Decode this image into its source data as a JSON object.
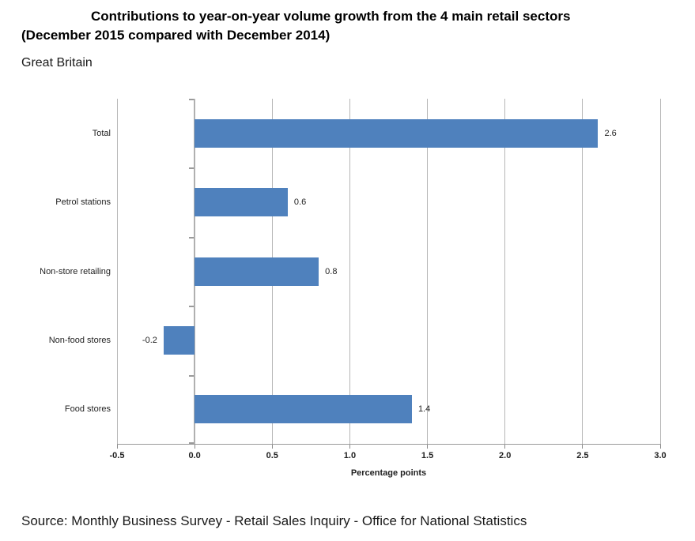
{
  "header": {
    "title_line1": "Contributions to year-on-year volume growth from the 4 main retail sectors",
    "title_line2": "(December 2015 compared with December 2014)",
    "subtitle": "Great Britain"
  },
  "footer": {
    "source": "Source: Monthly Business Survey - Retail Sales Inquiry - Office for National Statistics"
  },
  "chart_data": {
    "type": "bar",
    "orientation": "horizontal",
    "title": "Contributions to year-on-year volume growth from the 4 main retail sectors (December 2015 compared with December 2014)",
    "subtitle": "Great Britain",
    "categories": [
      "Total",
      "Petrol stations",
      "Non-store retailing",
      "Non-food stores",
      "Food stores"
    ],
    "values": [
      2.6,
      0.6,
      0.8,
      -0.2,
      1.4
    ],
    "data_labels": [
      "2.6",
      "0.6",
      "0.8",
      "-0.2",
      "1.4"
    ],
    "xlabel": "Percentage points",
    "ylabel": "",
    "xlim": [
      -0.5,
      3.0
    ],
    "xticks": [
      -0.5,
      0.0,
      0.5,
      1.0,
      1.5,
      2.0,
      2.5,
      3.0
    ],
    "xtick_labels": [
      "-0.5",
      "0.0",
      "0.5",
      "1.0",
      "1.5",
      "2.0",
      "2.5",
      "3.0"
    ],
    "grid": "vertical-gridlines-on",
    "legend": "none",
    "bar_color": "#4F81BD"
  },
  "colors": {
    "bar": "#4F81BD",
    "gridline": "#B6B6B6",
    "axis": "#9B9B9B",
    "text": "#1F1F1F"
  }
}
